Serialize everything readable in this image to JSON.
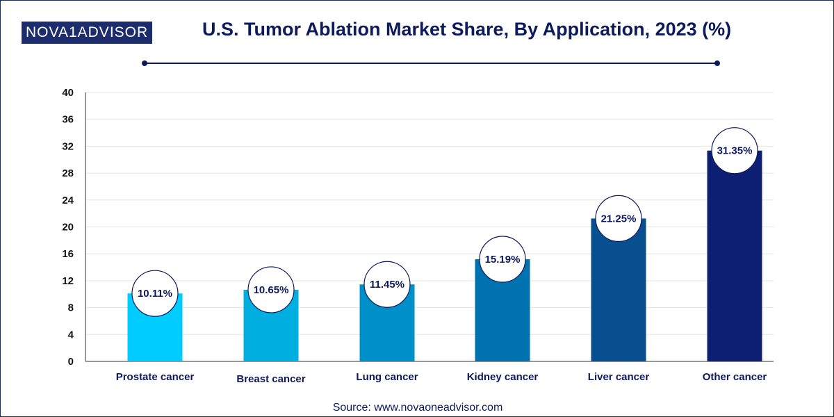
{
  "logo": {
    "text": "NOVA1ADVISOR"
  },
  "source": "Source: www.novaoneadvisor.com",
  "colors": {
    "title": "#0d1a5c",
    "bars": [
      "#00ccff",
      "#00aee0",
      "#0090c9",
      "#0072b0",
      "#084f8f",
      "#0c1f73"
    ],
    "grid": "#e4e4e4",
    "axis": "#333333"
  },
  "chart_data": {
    "type": "bar",
    "title": "U.S. Tumor Ablation Market Share, By Application, 2023 (%)",
    "xlabel": "",
    "ylabel": "",
    "categories": [
      "Prostate cancer",
      "Breast cancer",
      "Lung cancer",
      "Kidney cancer",
      "Liver cancer",
      "Other cancer"
    ],
    "values": [
      10.11,
      10.65,
      11.45,
      15.19,
      21.25,
      31.35
    ],
    "data_labels": [
      "10.11%",
      "10.65%",
      "11.45%",
      "15.19%",
      "21.25%",
      "31.35%"
    ],
    "ylim": [
      0,
      40
    ],
    "yticks": [
      0,
      4,
      8,
      12,
      16,
      20,
      24,
      28,
      32,
      36,
      40
    ],
    "grid": true,
    "legend": "none"
  }
}
